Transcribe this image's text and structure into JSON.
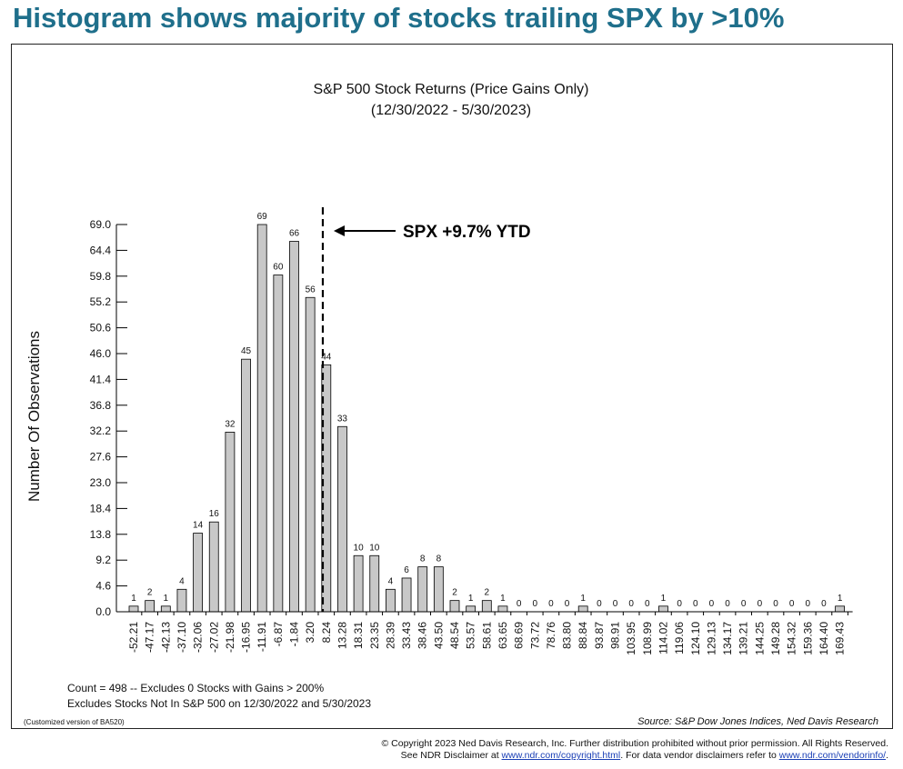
{
  "page": {
    "headline": "Histogram shows majority of stocks trailing SPX by >10%",
    "colors": {
      "headline": "#1f6f8b",
      "bars": "#c8c8c8",
      "bar_outline": "#000000"
    }
  },
  "chart_data": {
    "type": "bar",
    "title": "S&P 500 Stock Returns (Price Gains Only)",
    "subtitle": "(12/30/2022 - 5/30/2023)",
    "ylabel": "Number Of Observations",
    "xlabel": "",
    "ylim": [
      0,
      69.0
    ],
    "yticks": [
      "0.0",
      "4.6",
      "9.2",
      "13.8",
      "18.4",
      "23.0",
      "27.6",
      "32.2",
      "36.8",
      "41.4",
      "46.0",
      "50.6",
      "55.2",
      "59.8",
      "64.4",
      "69.0"
    ],
    "categories": [
      "-52.21",
      "-47.17",
      "-42.13",
      "-37.10",
      "-32.06",
      "-27.02",
      "-21.98",
      "-16.95",
      "-11.91",
      "-6.87",
      "-1.84",
      "3.20",
      "8.24",
      "13.28",
      "18.31",
      "23.35",
      "28.39",
      "33.43",
      "38.46",
      "43.50",
      "48.54",
      "53.57",
      "58.61",
      "63.65",
      "68.69",
      "73.72",
      "78.76",
      "83.80",
      "88.84",
      "93.87",
      "98.91",
      "103.95",
      "108.99",
      "114.02",
      "119.06",
      "124.10",
      "129.13",
      "134.17",
      "139.21",
      "144.25",
      "149.28",
      "154.32",
      "159.36",
      "164.40",
      "169.43"
    ],
    "values": [
      1,
      2,
      1,
      4,
      14,
      16,
      32,
      45,
      69,
      60,
      66,
      56,
      44,
      33,
      10,
      10,
      4,
      6,
      8,
      8,
      2,
      1,
      2,
      1,
      0,
      0,
      0,
      0,
      1,
      0,
      0,
      0,
      0,
      1,
      0,
      0,
      0,
      0,
      0,
      0,
      0,
      0,
      0,
      0,
      1
    ],
    "reference_line": {
      "x": 9.7,
      "label": "SPX +9.7% YTD"
    },
    "notes": [
      "Count = 498 -- Excludes 0 Stocks with Gains > 200%",
      "Excludes Stocks Not In S&P 500 on 12/30/2022 and 5/30/2023"
    ],
    "version_note": "(Customized version of BA520)",
    "source": "Source: S&P Dow Jones Indices, Ned Davis Research"
  },
  "footer": {
    "line1": "© Copyright 2023 Ned Davis Research, Inc.  Further distribution prohibited without prior permission.  All Rights Reserved.",
    "line2_prefix": "See NDR Disclaimer at ",
    "link1": "www.ndr.com/copyright.html",
    "line2_middle": ". For data vendor disclaimers refer to ",
    "link2": "www.ndr.com/vendorinfo/",
    "line2_suffix": "."
  }
}
